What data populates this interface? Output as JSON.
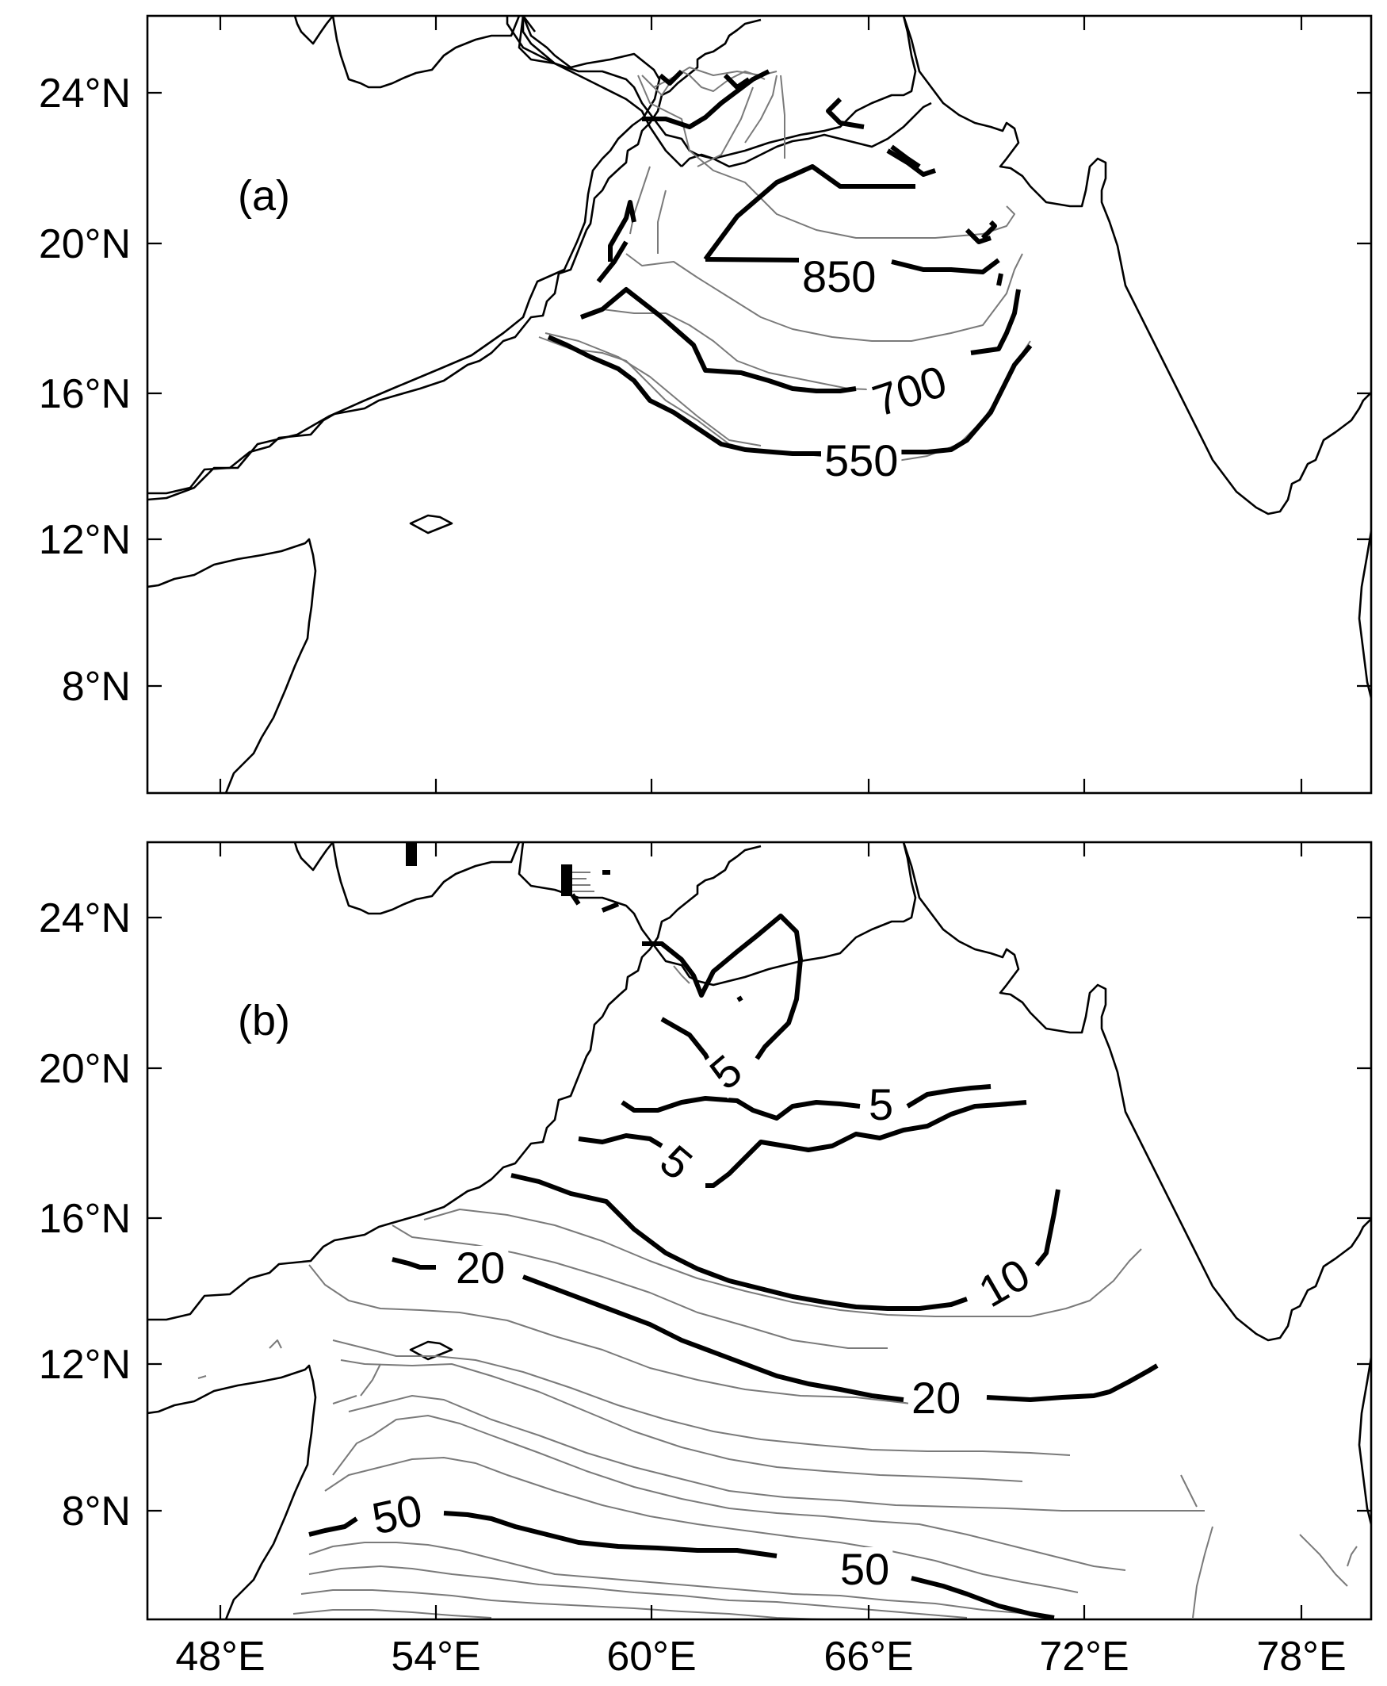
{
  "panels": [
    {
      "label": "(a)",
      "contour_labels": [
        "850",
        "700",
        "550"
      ]
    },
    {
      "label": "(b)",
      "contour_labels": [
        "5",
        "5",
        "5",
        "10",
        "20",
        "20",
        "50",
        "50"
      ]
    }
  ],
  "axes": {
    "y_ticks": [
      "24°N",
      "20°N",
      "16°N",
      "12°N",
      "8°N"
    ],
    "x_ticks": [
      "48°E",
      "54°E",
      "60°E",
      "66°E",
      "72°E",
      "78°E"
    ]
  }
}
